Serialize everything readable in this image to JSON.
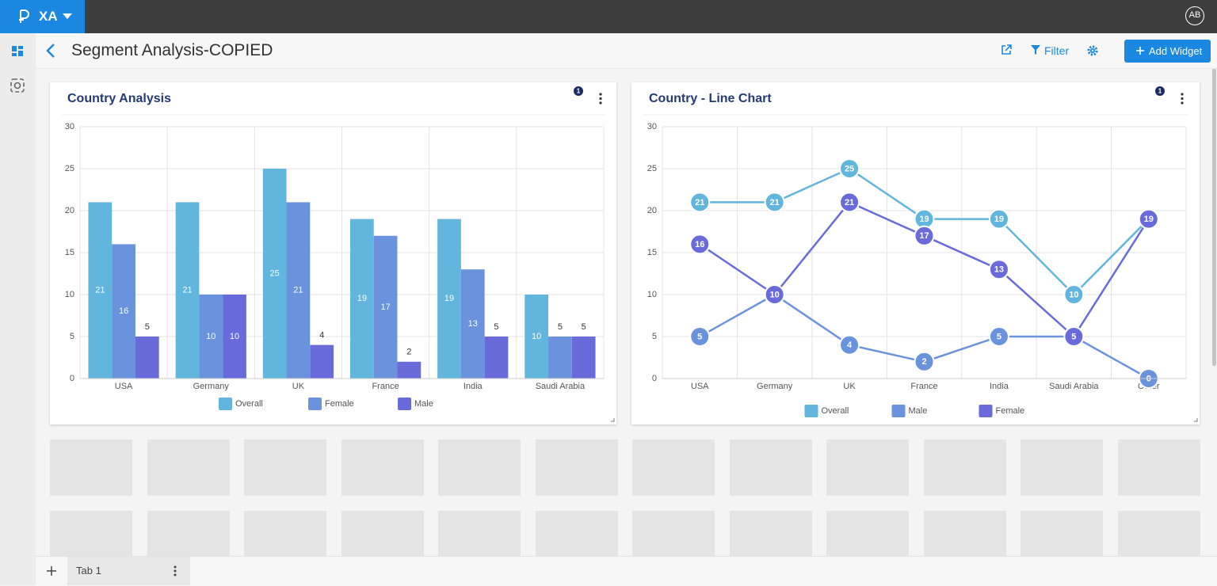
{
  "app": {
    "logo_text": "XA",
    "avatar": "AB",
    "page_title": "Segment Analysis-COPIED",
    "filter_label": "Filter",
    "add_widget_label": "Add Widget",
    "tab_label": "Tab 1"
  },
  "widgets": [
    {
      "badge": 1
    },
    {
      "badge": 1
    }
  ],
  "chart_data": [
    {
      "type": "bar",
      "title": "Country Analysis",
      "categories": [
        "USA",
        "Germany",
        "UK",
        "France",
        "India",
        "Saudi Arabia"
      ],
      "series": [
        {
          "name": "Overall",
          "color": "#62b5dc",
          "values": [
            21,
            21,
            25,
            19,
            19,
            10
          ]
        },
        {
          "name": "Female",
          "color": "#6a92dd",
          "values": [
            16,
            10,
            21,
            17,
            13,
            5
          ]
        },
        {
          "name": "Male",
          "color": "#6a6bdb",
          "values": [
            5,
            10,
            4,
            2,
            5,
            5
          ]
        }
      ],
      "ylim": [
        0,
        30
      ],
      "yticks": [
        0,
        5,
        10,
        15,
        20,
        25,
        30
      ],
      "grid": true,
      "legend": "bottom"
    },
    {
      "type": "line",
      "title": "Country - Line Chart",
      "categories": [
        "USA",
        "Germany",
        "UK",
        "France",
        "India",
        "Saudi Arabia",
        "Other"
      ],
      "series": [
        {
          "name": "Overall",
          "color": "#62b5dc",
          "values": [
            21,
            21,
            25,
            19,
            19,
            10,
            19
          ]
        },
        {
          "name": "Male",
          "color": "#6a92dd",
          "values": [
            5,
            10,
            4,
            2,
            5,
            5,
            0
          ]
        },
        {
          "name": "Female",
          "color": "#6a6bdb",
          "values": [
            16,
            10,
            21,
            17,
            13,
            5,
            19
          ]
        }
      ],
      "ylim": [
        0,
        30
      ],
      "yticks": [
        0,
        5,
        10,
        15,
        20,
        25,
        30
      ],
      "grid": true,
      "legend": "bottom"
    }
  ]
}
